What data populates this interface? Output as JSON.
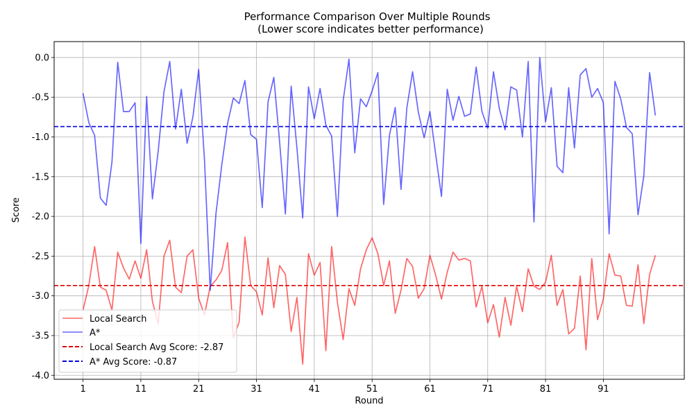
{
  "chart_data": {
    "type": "line",
    "title": "Performance Comparison Over Multiple Rounds",
    "subtitle": "(Lower score indicates better performance)",
    "xlabel": "Round",
    "ylabel": "Score",
    "xlim": [
      -4,
      105
    ],
    "ylim": [
      -4.05,
      0.2
    ],
    "x_ticks": [
      1,
      11,
      21,
      31,
      41,
      51,
      61,
      71,
      81,
      91
    ],
    "y_ticks": [
      0.0,
      -0.5,
      -1.0,
      -1.5,
      -2.0,
      -2.5,
      -3.0,
      -3.5,
      -4.0
    ],
    "grid": true,
    "legend_position": "lower-left",
    "series": [
      {
        "name": "Local Search",
        "color": "#ff0000",
        "values": [
          -3.18,
          -2.87,
          -2.38,
          -2.89,
          -2.93,
          -3.18,
          -2.45,
          -2.65,
          -2.79,
          -2.56,
          -2.78,
          -2.42,
          -3.07,
          -3.35,
          -2.5,
          -2.3,
          -2.89,
          -2.96,
          -2.5,
          -2.42,
          -3.03,
          -3.24,
          -2.88,
          -2.8,
          -2.68,
          -2.33,
          -3.53,
          -3.33,
          -2.26,
          -2.87,
          -2.95,
          -3.24,
          -2.52,
          -3.15,
          -2.62,
          -2.73,
          -3.45,
          -3.02,
          -3.86,
          -2.47,
          -2.74,
          -2.58,
          -3.69,
          -2.38,
          -3.08,
          -3.55,
          -2.91,
          -3.12,
          -2.66,
          -2.42,
          -2.27,
          -2.47,
          -2.87,
          -2.56,
          -3.22,
          -2.93,
          -2.53,
          -2.63,
          -3.03,
          -2.91,
          -2.49,
          -2.74,
          -3.04,
          -2.7,
          -2.45,
          -2.55,
          -2.53,
          -2.56,
          -3.14,
          -2.88,
          -3.34,
          -3.11,
          -3.52,
          -3.02,
          -3.37,
          -2.88,
          -3.2,
          -2.66,
          -2.88,
          -2.92,
          -2.83,
          -2.49,
          -3.12,
          -2.92,
          -3.48,
          -3.41,
          -2.75,
          -3.68,
          -2.53,
          -3.3,
          -3.04,
          -2.47,
          -2.74,
          -2.75,
          -3.12,
          -3.13,
          -2.61,
          -3.35,
          -2.73,
          -2.49
        ]
      },
      {
        "name": "A*",
        "color": "#0000ff",
        "values": [
          -0.45,
          -0.82,
          -0.98,
          -1.77,
          -1.86,
          -1.32,
          -0.06,
          -0.68,
          -0.68,
          -0.57,
          -2.34,
          -0.49,
          -1.78,
          -1.18,
          -0.43,
          -0.05,
          -0.9,
          -0.4,
          -1.08,
          -0.75,
          -0.15,
          -1.28,
          -2.93,
          -1.96,
          -1.35,
          -0.83,
          -0.51,
          -0.58,
          -0.29,
          -0.97,
          -1.03,
          -1.89,
          -0.56,
          -0.25,
          -1.06,
          -1.97,
          -0.36,
          -1.14,
          -2.02,
          -0.37,
          -0.77,
          -0.39,
          -0.85,
          -0.99,
          -2.0,
          -0.54,
          -0.02,
          -1.2,
          -0.52,
          -0.62,
          -0.42,
          -0.19,
          -1.85,
          -0.98,
          -0.63,
          -1.66,
          -0.64,
          -0.18,
          -0.69,
          -1.01,
          -0.68,
          -1.22,
          -1.75,
          -0.4,
          -0.79,
          -0.49,
          -0.74,
          -0.71,
          -0.12,
          -0.68,
          -0.89,
          -0.18,
          -0.64,
          -0.91,
          -0.37,
          -0.41,
          -1.0,
          -0.05,
          -2.07,
          0.0,
          -0.81,
          -0.38,
          -1.37,
          -1.45,
          -0.38,
          -1.14,
          -0.22,
          -0.14,
          -0.5,
          -0.39,
          -0.57,
          -2.22,
          -0.3,
          -0.52,
          -0.88,
          -0.96,
          -1.98,
          -1.49,
          -0.19,
          -0.73
        ]
      }
    ],
    "reference_lines": [
      {
        "name": "Local Search Avg Score: -2.87",
        "value": -2.87,
        "color": "#dd0000",
        "style": "dashed"
      },
      {
        "name": "A* Avg Score: -0.87",
        "value": -0.87,
        "color": "#0000dd",
        "style": "dashed"
      }
    ]
  }
}
